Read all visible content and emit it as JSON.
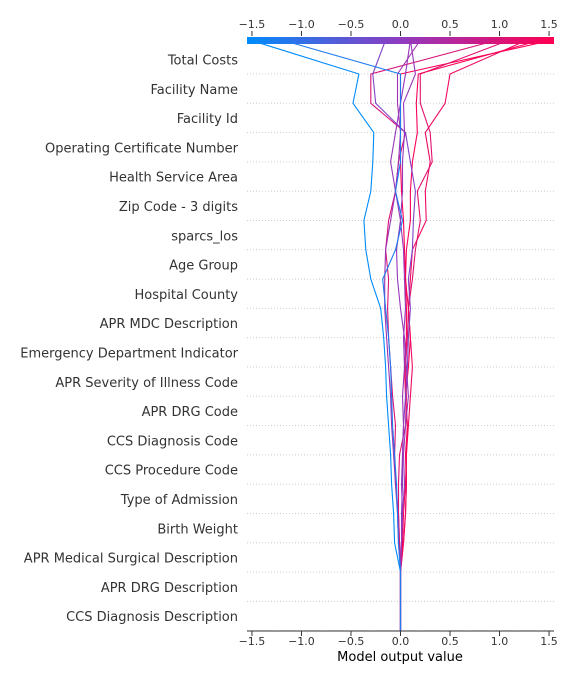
{
  "chart_data": {
    "type": "line",
    "xlabel": "Model output value",
    "xlim": [
      -1.55,
      1.55
    ],
    "x_ticks": [
      -1.5,
      -1.0,
      -0.5,
      0.0,
      0.5,
      1.0,
      1.5
    ],
    "x_tick_labels": [
      "−1.5",
      "−1.0",
      "−0.5",
      "0.0",
      "0.5",
      "1.0",
      "1.5"
    ],
    "grid": "horizontal dotted",
    "colorbar": {
      "range": [
        -1.5,
        1.5
      ],
      "low_color": "#008bfb",
      "mid_color": "#8f3bc0",
      "high_color": "#ff0052"
    },
    "base_value": 0.0,
    "features": [
      "Total Costs",
      "Facility Name",
      "Facility Id",
      "Operating Certificate Number",
      "Health Service Area",
      "Zip Code - 3 digits",
      "sparcs_los",
      "Age Group",
      "Hospital County",
      "APR MDC Description",
      "Emergency Department Indicator",
      "APR Severity of Illness Code",
      "APR DRG Code",
      "CCS Diagnosis Code",
      "CCS Procedure Code",
      "Type of Admission",
      "Birth Weight",
      "APR Medical Surgical Description",
      "APR DRG Description",
      "CCS Diagnosis Description"
    ],
    "series": [
      {
        "values": [
          0.0,
          0.0,
          0.0,
          0.0,
          0.03,
          0.05,
          0.06,
          0.05,
          0.07,
          0.05,
          0.04,
          0.06,
          0.06,
          0.05,
          0.04,
          0.03,
          0.01,
          0.0,
          0.0,
          0.0,
          0.0,
          1.54
        ]
      },
      {
        "values": [
          0.0,
          0.0,
          0.0,
          0.0,
          0.03,
          0.05,
          0.06,
          0.06,
          0.08,
          0.1,
          0.12,
          0.1,
          0.08,
          0.1,
          0.12,
          0.26,
          0.25,
          0.3,
          0.25,
          0.45,
          0.5,
          1.28
        ]
      },
      {
        "values": [
          0.0,
          0.0,
          0.0,
          0.0,
          -0.01,
          -0.02,
          -0.02,
          -0.01,
          0.05,
          0.06,
          0.05,
          0.07,
          0.08,
          0.12,
          0.15,
          0.2,
          0.17,
          0.32,
          0.3,
          0.2,
          0.2,
          1.1
        ]
      },
      {
        "values": [
          0.0,
          0.0,
          0.0,
          0.0,
          0.02,
          0.03,
          0.05,
          0.06,
          0.07,
          0.05,
          0.08,
          0.1,
          0.08,
          0.05,
          0.06,
          0.1,
          0.1,
          0.12,
          0.17,
          0.16,
          0.18,
          1.42
        ]
      },
      {
        "values": [
          0.0,
          0.0,
          0.0,
          0.0,
          -0.01,
          -0.02,
          -0.05,
          -0.06,
          -0.05,
          -0.08,
          -0.1,
          -0.12,
          -0.13,
          -0.12,
          -0.15,
          -0.12,
          -0.05,
          -0.02,
          0.05,
          -0.3,
          -0.3,
          0.98
        ]
      },
      {
        "values": [
          0.0,
          0.0,
          0.0,
          0.0,
          -0.02,
          -0.03,
          -0.05,
          -0.07,
          -0.09,
          -0.1,
          -0.12,
          -0.14,
          -0.16,
          -0.16,
          -0.15,
          -0.1,
          -0.05,
          -0.02,
          0.0,
          -0.03,
          -0.03,
          0.2
        ]
      },
      {
        "values": [
          0.0,
          0.0,
          0.0,
          0.0,
          0.01,
          0.02,
          0.04,
          0.03,
          0.05,
          0.08,
          0.06,
          0.04,
          0.0,
          -0.03,
          -0.04,
          0.0,
          0.02,
          0.02,
          0.04,
          0.03,
          0.15,
          0.1
        ]
      },
      {
        "values": [
          0.0,
          0.0,
          0.0,
          0.0,
          0.01,
          0.01,
          0.02,
          0.02,
          0.03,
          0.05,
          0.07,
          0.08,
          0.1,
          0.08,
          0.12,
          0.13,
          0.15,
          0.1,
          0.05,
          -0.25,
          -0.28,
          -0.15
        ]
      },
      {
        "values": [
          0.0,
          0.0,
          0.0,
          0.0,
          0.01,
          0.02,
          0.01,
          0.02,
          0.03,
          0.02,
          0.04,
          0.03,
          0.05,
          0.04,
          0.03,
          0.0,
          -0.05,
          -0.1,
          -0.05,
          0.0,
          0.05,
          0.1
        ]
      },
      {
        "values": [
          0.0,
          0.0,
          0.0,
          0.0,
          -0.06,
          -0.07,
          -0.09,
          -0.1,
          -0.12,
          -0.14,
          -0.15,
          -0.17,
          -0.2,
          -0.3,
          -0.35,
          -0.37,
          -0.3,
          -0.28,
          -0.27,
          -0.48,
          -0.42,
          -1.52
        ]
      },
      {
        "values": [
          0.0,
          0.0,
          0.0,
          0.0,
          -0.02,
          -0.03,
          -0.04,
          -0.06,
          -0.08,
          -0.09,
          -0.1,
          -0.12,
          -0.15,
          -0.18,
          -0.05,
          0.02,
          -0.05,
          0.0,
          0.0,
          0.0,
          0.0,
          -1.2
        ]
      }
    ]
  }
}
